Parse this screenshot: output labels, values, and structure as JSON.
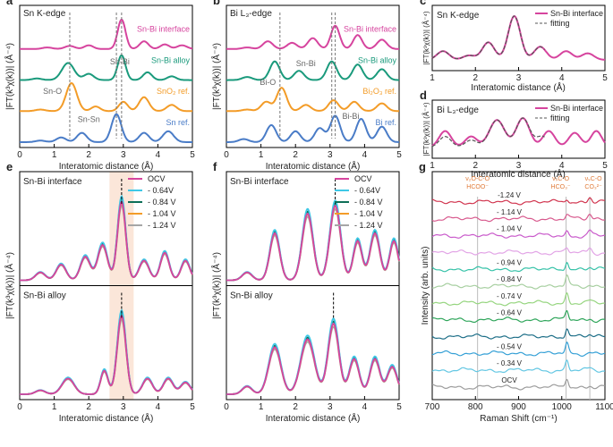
{
  "colors": {
    "pink": "#d6449e",
    "green": "#1a9a7c",
    "orange": "#f39c28",
    "blue": "#4a7cc7",
    "cyan": "#3ec8e6",
    "dkgreen": "#0e6f57",
    "gray": "#a6a6a6",
    "dash": "#555555",
    "band": "#fbe6d9"
  },
  "chart_data": [
    {
      "panel": "a",
      "type": "line",
      "title": "Sn K-edge",
      "xlabel": "Interatomic distance (Å)",
      "ylabel": "|FT(k³χ(k))| (Å⁻⁴)",
      "xlim": [
        0,
        5
      ],
      "xticks": [
        0,
        1,
        2,
        3,
        4,
        5
      ],
      "series": [
        {
          "name": "Sn-Bi interface",
          "color": "pink",
          "offset": 3.0,
          "peaks": [
            [
              0.8,
              0.05,
              0.2
            ],
            [
              1.45,
              0.1,
              0.2
            ],
            [
              2.0,
              0.12,
              0.18
            ],
            [
              2.95,
              0.95,
              0.16
            ],
            [
              3.6,
              0.25,
              0.18
            ],
            [
              4.2,
              0.15,
              0.18
            ],
            [
              4.7,
              0.12,
              0.2
            ]
          ]
        },
        {
          "name": "Sn-Bi alloy",
          "color": "green",
          "offset": 2.0,
          "peaks": [
            [
              0.5,
              0.05,
              0.2
            ],
            [
              1.4,
              0.55,
              0.25
            ],
            [
              2.0,
              0.2,
              0.2
            ],
            [
              2.95,
              0.8,
              0.16
            ],
            [
              3.7,
              0.25,
              0.18
            ],
            [
              4.4,
              0.12,
              0.18
            ]
          ]
        },
        {
          "name": "SnO₂ ref.",
          "color": "orange",
          "offset": 1.0,
          "peaks": [
            [
              0.6,
              0.05,
              0.2
            ],
            [
              1.5,
              0.9,
              0.22
            ],
            [
              2.2,
              0.15,
              0.18
            ],
            [
              3.0,
              0.3,
              0.18
            ],
            [
              3.6,
              0.45,
              0.2
            ],
            [
              4.4,
              0.2,
              0.2
            ]
          ]
        },
        {
          "name": "Sn ref.",
          "color": "blue",
          "offset": 0.0,
          "peaks": [
            [
              0.6,
              0.05,
              0.2
            ],
            [
              1.2,
              0.15,
              0.2
            ],
            [
              1.8,
              0.3,
              0.2
            ],
            [
              2.8,
              0.9,
              0.2
            ],
            [
              3.6,
              0.3,
              0.2
            ],
            [
              4.3,
              0.35,
              0.22
            ]
          ]
        }
      ],
      "annotations": [
        "Sn-Bi",
        "Sn-O",
        "Sn-Sn"
      ]
    },
    {
      "panel": "b",
      "type": "line",
      "title": "Bi L₃-edge",
      "xlabel": "Interatomic distance (Å)",
      "ylabel": "|FT(k³χ(k))| (Å⁻⁴)",
      "xlim": [
        0,
        5
      ],
      "xticks": [
        0,
        1,
        2,
        3,
        4,
        5
      ],
      "series": [
        {
          "name": "Sn-Bi interface",
          "color": "pink",
          "offset": 3.0,
          "peaks": [
            [
              0.6,
              0.05,
              0.2
            ],
            [
              1.2,
              0.25,
              0.2
            ],
            [
              1.9,
              0.2,
              0.2
            ],
            [
              2.5,
              0.35,
              0.2
            ],
            [
              3.15,
              0.75,
              0.18
            ],
            [
              3.8,
              0.45,
              0.18
            ],
            [
              4.5,
              0.3,
              0.2
            ]
          ]
        },
        {
          "name": "Sn-Bi alloy",
          "color": "green",
          "offset": 2.0,
          "peaks": [
            [
              0.6,
              0.1,
              0.2
            ],
            [
              1.4,
              0.6,
              0.2
            ],
            [
              2.1,
              0.3,
              0.2
            ],
            [
              3.05,
              0.6,
              0.2
            ],
            [
              3.8,
              0.5,
              0.2
            ],
            [
              4.5,
              0.35,
              0.2
            ]
          ]
        },
        {
          "name": "Bi₂O₃ ref.",
          "color": "orange",
          "offset": 1.0,
          "peaks": [
            [
              0.6,
              0.05,
              0.2
            ],
            [
              1.15,
              0.3,
              0.2
            ],
            [
              1.6,
              0.75,
              0.2
            ],
            [
              2.3,
              0.2,
              0.2
            ],
            [
              3.1,
              0.35,
              0.2
            ],
            [
              3.7,
              0.3,
              0.2
            ],
            [
              4.5,
              0.25,
              0.2
            ]
          ]
        },
        {
          "name": "Bi ref.",
          "color": "blue",
          "offset": 0.0,
          "peaks": [
            [
              0.5,
              0.1,
              0.2
            ],
            [
              1.3,
              0.55,
              0.2
            ],
            [
              2.0,
              0.35,
              0.2
            ],
            [
              2.7,
              0.45,
              0.2
            ],
            [
              3.15,
              0.85,
              0.2
            ],
            [
              3.9,
              0.75,
              0.2
            ],
            [
              4.5,
              0.5,
              0.2
            ]
          ]
        }
      ],
      "annotations": [
        "Sn-Bi",
        "Bi-O",
        "Bi-Bi"
      ]
    },
    {
      "panel": "c",
      "type": "line",
      "title": "Sn K-edge",
      "xlabel": "Interatomic distance (Å)",
      "ylabel": "|FT(k³χ(k))| (Å⁻⁴)",
      "xlim": [
        1,
        5
      ],
      "xticks": [
        1,
        2,
        3,
        4,
        5
      ],
      "legend": [
        "Sn-Bi interface",
        "fitting"
      ],
      "series": [
        {
          "name": "Sn-Bi interface",
          "color": "pink",
          "offset": 0,
          "peaks": [
            [
              1.25,
              0.2,
              0.2
            ],
            [
              1.85,
              0.1,
              0.2
            ],
            [
              2.3,
              0.4,
              0.2
            ],
            [
              2.9,
              1.0,
              0.2
            ],
            [
              3.5,
              0.3,
              0.2
            ],
            [
              4.1,
              0.2,
              0.2
            ],
            [
              4.6,
              0.15,
              0.2
            ]
          ]
        },
        {
          "name": "fitting",
          "color": "dash",
          "dashed": true,
          "range": [
            1.0,
            3.6
          ],
          "offset": 0,
          "peaks": [
            [
              1.25,
              0.2,
              0.2
            ],
            [
              1.85,
              0.1,
              0.2
            ],
            [
              2.3,
              0.4,
              0.2
            ],
            [
              2.9,
              1.0,
              0.2
            ],
            [
              3.5,
              0.3,
              0.2
            ]
          ]
        }
      ]
    },
    {
      "panel": "d",
      "type": "line",
      "title": "Bi L₃-edge",
      "xlabel": "Interatomic distance (Å)",
      "ylabel": "|FT(k³χ(k))| (Å⁻⁴)",
      "xlim": [
        1,
        5
      ],
      "xticks": [
        1,
        2,
        3,
        4,
        5
      ],
      "legend": [
        "Sn-Bi interface",
        "fitting"
      ],
      "series": [
        {
          "name": "Sn-Bi interface",
          "color": "pink",
          "offset": 0,
          "peaks": [
            [
              1.3,
              0.45,
              0.2
            ],
            [
              1.9,
              0.3,
              0.2
            ],
            [
              2.5,
              0.75,
              0.25
            ],
            [
              3.1,
              0.8,
              0.22
            ],
            [
              3.7,
              0.45,
              0.2
            ],
            [
              4.3,
              0.4,
              0.2
            ],
            [
              4.8,
              0.45,
              0.18
            ]
          ]
        },
        {
          "name": "fitting",
          "color": "dash",
          "dashed": true,
          "range": [
            1.0,
            3.6
          ],
          "offset": 0,
          "peaks": [
            [
              1.3,
              0.3,
              0.2
            ],
            [
              1.9,
              0.2,
              0.2
            ],
            [
              2.5,
              0.75,
              0.25
            ],
            [
              3.1,
              0.8,
              0.22
            ],
            [
              3.55,
              0.3,
              0.2
            ]
          ]
        }
      ]
    },
    {
      "panel": "e",
      "type": "line",
      "xlabel": "Interatomic distance (Å)",
      "ylabel": "|FT(k³χ(k))| (Å⁻⁴)",
      "xlim": [
        0,
        5
      ],
      "xticks": [
        0,
        1,
        2,
        3,
        4,
        5
      ],
      "legend": [
        "OCV",
        "- 0.64V",
        "- 0.84 V",
        "- 1.04 V",
        "- 1.24 V"
      ],
      "subpanels": [
        {
          "title": "Sn-Bi interface",
          "peaks": [
            [
              0.6,
              0.1,
              0.2
            ],
            [
              1.2,
              0.2,
              0.2
            ],
            [
              1.9,
              0.3,
              0.2
            ],
            [
              2.4,
              0.45,
              0.2
            ],
            [
              2.95,
              1.0,
              0.17
            ],
            [
              3.6,
              0.25,
              0.2
            ],
            [
              4.2,
              0.35,
              0.18
            ],
            [
              4.8,
              0.25,
              0.18
            ]
          ]
        },
        {
          "title": "Sn-Bi alloy",
          "peaks": [
            [
              0.6,
              0.05,
              0.2
            ],
            [
              1.4,
              0.2,
              0.25
            ],
            [
              2.45,
              0.3,
              0.15
            ],
            [
              2.95,
              1.0,
              0.18
            ],
            [
              3.7,
              0.2,
              0.2
            ],
            [
              4.3,
              0.2,
              0.2
            ],
            [
              4.8,
              0.15,
              0.2
            ]
          ]
        }
      ]
    },
    {
      "panel": "f",
      "type": "line",
      "xlabel": "Interatomic distance (Å)",
      "ylabel": "|FT(k³χ(k))| (Å⁻⁴)",
      "xlim": [
        0,
        5
      ],
      "xticks": [
        0,
        1,
        2,
        3,
        4,
        5
      ],
      "legend": [
        "OCV",
        "- 0.64V",
        "- 0.84 V",
        "- 1.04 V",
        "- 1.24 V"
      ],
      "subpanels": [
        {
          "title": "Sn-Bi interface",
          "peaks": [
            [
              0.6,
              0.1,
              0.2
            ],
            [
              1.4,
              0.6,
              0.2
            ],
            [
              2.35,
              0.85,
              0.22
            ],
            [
              3.15,
              0.95,
              0.22
            ],
            [
              3.8,
              0.5,
              0.18
            ],
            [
              4.3,
              0.6,
              0.2
            ],
            [
              4.85,
              0.5,
              0.18
            ]
          ]
        },
        {
          "title": "Sn-Bi alloy",
          "peaks": [
            [
              0.6,
              0.1,
              0.2
            ],
            [
              1.4,
              0.6,
              0.25
            ],
            [
              2.35,
              0.7,
              0.28
            ],
            [
              3.1,
              0.9,
              0.22
            ],
            [
              3.7,
              0.45,
              0.2
            ],
            [
              4.3,
              0.45,
              0.2
            ],
            [
              4.8,
              0.35,
              0.2
            ]
          ]
        }
      ]
    },
    {
      "panel": "g",
      "type": "line",
      "xlabel": "Raman Shift (cm⁻¹)",
      "ylabel": "Intensity (arb. units)",
      "xlim": [
        700,
        1100
      ],
      "xticks": [
        700,
        800,
        900,
        1000,
        1100
      ],
      "vlines": [
        805,
        1010,
        1065
      ],
      "band_labels": [
        {
          "l1": "ν₂O-C-O",
          "l2": "HCOO⁻",
          "x": 805
        },
        {
          "l1": "νₛC-O",
          "l2": "HCO₃⁻",
          "x": 1010
        },
        {
          "l1": "νₛC-O",
          "l2": "CO₃²⁻",
          "x": 1065
        }
      ],
      "series": [
        {
          "name": "-1.24 V",
          "color": "#d1344e"
        },
        {
          "name": "- 1.14 V",
          "color": "#d85a8e"
        },
        {
          "name": "- 1.04 V",
          "color": "#c95acb"
        },
        {
          "name": "",
          "color": "#e2a4e6"
        },
        {
          "name": "- 0.94 V",
          "color": "#36c2a8"
        },
        {
          "name": "- 0.84 V",
          "color": "#a7cfa0"
        },
        {
          "name": "- 0.74 V",
          "color": "#96d57f"
        },
        {
          "name": "- 0.64 V",
          "color": "#2ea55a"
        },
        {
          "name": "",
          "color": "#1e6f88"
        },
        {
          "name": "- 0.54 V",
          "color": "#35a0d6"
        },
        {
          "name": "- 0.34 V",
          "color": "#64c7e3"
        },
        {
          "name": "OCV",
          "color": "#9c9c9c"
        }
      ]
    }
  ]
}
